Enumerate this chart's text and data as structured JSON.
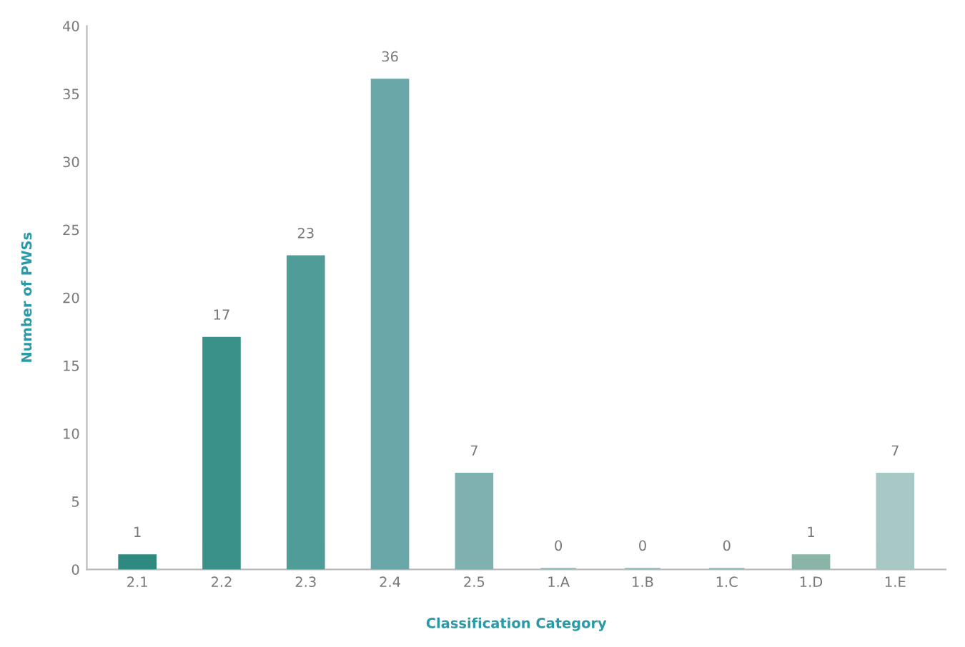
{
  "chart_data": {
    "type": "bar",
    "xlabel": "Classification Category",
    "ylabel": "Number of PWSs",
    "categories": [
      "2.1",
      "2.2",
      "2.3",
      "2.4",
      "2.5",
      "1.A",
      "1.B",
      "1.C",
      "1.D",
      "1.E"
    ],
    "values": [
      1,
      17,
      23,
      36,
      7,
      0,
      0,
      0,
      1,
      7
    ],
    "colors": [
      "#2e8a80",
      "#3a918a",
      "#4f9c98",
      "#6aa7a8",
      "#7fb1b0",
      "#8fbab8",
      "#8fbab8",
      "#8fbab8",
      "#8ab4a8",
      "#a8c8c6"
    ],
    "ylim": [
      0,
      40
    ],
    "yticks": [
      0,
      5,
      10,
      15,
      20,
      25,
      30,
      35,
      40
    ],
    "grid": false,
    "data_labels": true
  }
}
